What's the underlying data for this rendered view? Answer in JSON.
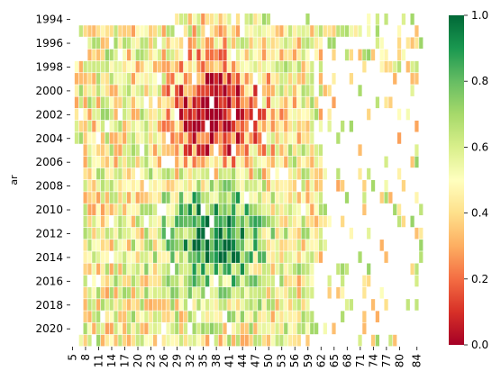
{
  "chart_data": {
    "type": "heatmap",
    "title": "",
    "xlabel": "",
    "ylabel": "ar",
    "colormap": "RdYlGn",
    "colormap_stops": [
      "#a50026",
      "#d73027",
      "#f46d43",
      "#fdae61",
      "#fee08b",
      "#ffffbf",
      "#d9ef8b",
      "#a6d96a",
      "#66bd63",
      "#1a9850",
      "#006837"
    ],
    "color_range": [
      0.0,
      1.0
    ],
    "colorbar_ticks": [
      "0.0",
      "0.2",
      "0.4",
      "0.6",
      "0.8",
      "1.0"
    ],
    "x_range": [
      5,
      85
    ],
    "x_ticks": [
      "5",
      "8",
      "11",
      "14",
      "17",
      "20",
      "23",
      "26",
      "29",
      "32",
      "35",
      "38",
      "41",
      "44",
      "47",
      "50",
      "53",
      "56",
      "59",
      "62",
      "65",
      "68",
      "71",
      "74",
      "77",
      "80",
      "84"
    ],
    "y_range": [
      1994,
      2021
    ],
    "y_ticks": [
      "1994",
      "1996",
      "1998",
      "2000",
      "2002",
      "2004",
      "2006",
      "2008",
      "2010",
      "2012",
      "2014",
      "2016",
      "2018",
      "2020"
    ],
    "missing_cells_shown_as": "blank (white)",
    "value_pattern_description": {
      "early_years_mid_ages_1997_2006_ages_30_45": "low (red/orange)",
      "later_years_2008_2017_ages_33_48": "high (green)",
      "extremes_ages_above_60": "sparse, mixed"
    }
  }
}
